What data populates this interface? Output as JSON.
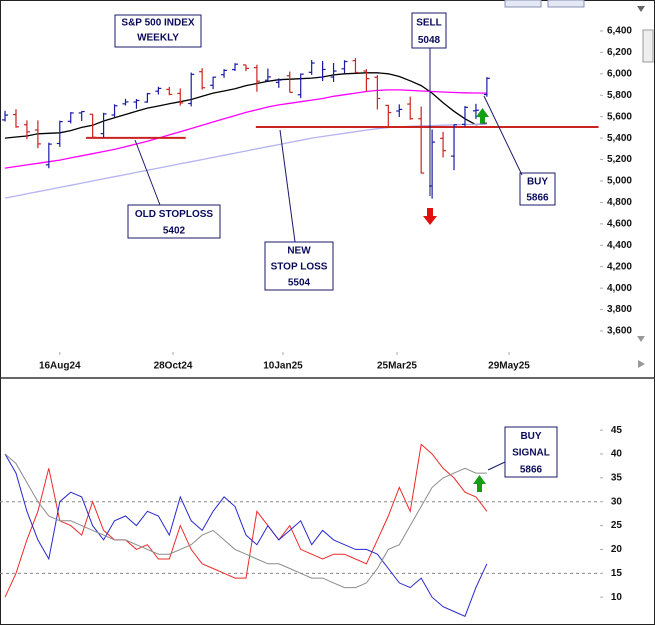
{
  "chart_data": [
    {
      "type": "ohlc",
      "title": "S&P 500 INDEX",
      "subtitle": "WEEKLY",
      "categories": [
        null,
        null,
        null,
        null,
        null,
        null,
        null,
        null,
        null,
        null,
        null,
        null,
        null,
        null,
        null,
        null,
        null,
        null,
        null,
        null,
        null,
        null,
        null,
        null,
        null,
        null,
        null,
        null,
        null,
        null,
        null,
        null,
        null,
        null,
        null,
        null,
        null,
        null,
        null,
        null,
        null,
        null,
        null,
        null,
        null
      ],
      "open": [
        5570,
        5620,
        5525,
        5476,
        5151,
        5350,
        5557,
        5635,
        5623,
        5442,
        5616,
        5720,
        5737,
        5737,
        5838,
        5855,
        5817,
        5723,
        6020,
        5893,
        5992,
        6040,
        6083,
        6058,
        5940,
        5920,
        5982,
        5805,
        6014,
        5969,
        5970,
        6047,
        6123,
        6026,
        5968,
        5705,
        5653,
        5718,
        5581,
        4953,
        5398,
        5232,
        5529,
        5655,
        5807
      ],
      "high": [
        5655,
        5670,
        5566,
        5566,
        5358,
        5563,
        5643,
        5651,
        5626,
        5636,
        5716,
        5767,
        5765,
        5822,
        5879,
        5878,
        5863,
        6012,
        6053,
        5972,
        6044,
        6099,
        6085,
        6085,
        6049,
        5958,
        6021,
        6004,
        6128,
        6120,
        6101,
        6127,
        6147,
        6044,
        5987,
        5710,
        5715,
        5787,
        5695,
        5481,
        5459,
        5528,
        5700,
        5720,
        5969
      ],
      "low": [
        5555,
        5497,
        5390,
        5306,
        5119,
        5318,
        5537,
        5560,
        5402,
        5406,
        5596,
        5704,
        5674,
        5730,
        5807,
        5800,
        5703,
        5696,
        5853,
        5856,
        5963,
        6026,
        6025,
        5833,
        5929,
        5869,
        5827,
        5773,
        5990,
        5932,
        5924,
        6004,
        6008,
        5837,
        5667,
        5505,
        5597,
        5572,
        5070,
        4835,
        5220,
        5101,
        5507,
        5579,
        5786
      ],
      "close": [
        5615,
        5505,
        5459,
        5346,
        5344,
        5554,
        5635,
        5648,
        5408,
        5626,
        5702,
        5738,
        5751,
        5815,
        5864,
        5808,
        5729,
        5995,
        5870,
        5969,
        6032,
        6090,
        6051,
        5931,
        5971,
        5942,
        5827,
        5997,
        6101,
        6041,
        6026,
        6115,
        6013,
        5955,
        5770,
        5639,
        5668,
        5581,
        5074,
        5363,
        5283,
        5525,
        5687,
        5660,
        5958
      ],
      "up_color": "#1a1aa8",
      "down_color": "#cc2222",
      "overlays": [
        {
          "color": "#000000",
          "values": [
            5400,
            5410,
            5420,
            5440,
            5445,
            5450,
            5470,
            5500,
            5520,
            5560,
            5590,
            5620,
            5650,
            5680,
            5700,
            5720,
            5740,
            5760,
            5790,
            5820,
            5840,
            5860,
            5890,
            5910,
            5930,
            5945,
            5950,
            5955,
            5960,
            5970,
            5990,
            6000,
            6005,
            6010,
            6010,
            6000,
            5975,
            5935,
            5890,
            5820,
            5730,
            5650,
            5580,
            5525,
            5540
          ]
        },
        {
          "color": "#ff00ff",
          "values": [
            5120,
            5135,
            5150,
            5165,
            5180,
            5195,
            5215,
            5235,
            5255,
            5275,
            5295,
            5320,
            5345,
            5370,
            5400,
            5430,
            5460,
            5490,
            5520,
            5550,
            5580,
            5610,
            5640,
            5665,
            5690,
            5710,
            5725,
            5740,
            5755,
            5770,
            5790,
            5805,
            5820,
            5835,
            5845,
            5850,
            5850,
            5845,
            5840,
            5835,
            5830,
            5826,
            5823,
            5821,
            5820
          ]
        },
        {
          "color": "#b4b4f0",
          "values": [
            4840,
            4860,
            4880,
            4900,
            4920,
            4940,
            4960,
            4980,
            5000,
            5020,
            5040,
            5060,
            5080,
            5100,
            5120,
            5140,
            5160,
            5180,
            5200,
            5220,
            5240,
            5260,
            5280,
            5300,
            5320,
            5340,
            5360,
            5380,
            5400,
            5415,
            5430,
            5445,
            5460,
            5475,
            5488,
            5498,
            5505,
            5510,
            5514,
            5518,
            5521,
            5524,
            5527,
            5529,
            5531
          ]
        }
      ],
      "levels": [
        {
          "value": 5402,
          "x": [
            7.4,
            16.5
          ],
          "color": "#cc2222"
        },
        {
          "value": 5504,
          "x": [
            22.9,
            54.2
          ],
          "color": "#cc2222"
        }
      ],
      "annotations": [
        {
          "lines": [
            "SELL",
            "5048"
          ]
        },
        {
          "lines": [
            "BUY",
            "5866"
          ]
        },
        {
          "lines": [
            "OLD STOPLOSS",
            "5402"
          ]
        },
        {
          "lines": [
            "NEW",
            "STOP LOSS",
            "5504"
          ]
        }
      ],
      "xlim": [
        -0.46,
        54.33
      ],
      "xticks": [
        {
          "value": 5,
          "label": "16Aug24"
        },
        {
          "value": 15.34,
          "label": "28Oct24"
        },
        {
          "value": 25.38,
          "label": "10Jan25"
        },
        {
          "value": 35.79,
          "label": "25Mar25"
        },
        {
          "value": 46.02,
          "label": "29May25"
        }
      ],
      "ylim": [
        3404,
        6689
      ],
      "yticks": [
        {
          "value": 3600,
          "label": "3,600"
        },
        {
          "value": 3800,
          "label": "3,800"
        },
        {
          "value": 4000,
          "label": "4,000"
        },
        {
          "value": 4200,
          "label": "4,200"
        },
        {
          "value": 4400,
          "label": "4,400"
        },
        {
          "value": 4600,
          "label": "4,600"
        },
        {
          "value": 4800,
          "label": "4,800"
        },
        {
          "value": 5000,
          "label": "5,000"
        },
        {
          "value": 5200,
          "label": "5,200"
        },
        {
          "value": 5400,
          "label": "5,400"
        },
        {
          "value": 5600,
          "label": "5,600"
        },
        {
          "value": 5800,
          "label": "5,800"
        },
        {
          "value": 6000,
          "label": "6,000"
        },
        {
          "value": 6200,
          "label": "6,200"
        },
        {
          "value": 6400,
          "label": "6,400"
        }
      ]
    },
    {
      "type": "line",
      "categories": [
        null,
        null,
        null,
        null,
        null,
        null,
        null,
        null,
        null,
        null,
        null,
        null,
        null,
        null,
        null,
        null,
        null,
        null,
        null,
        null,
        null,
        null,
        null,
        null,
        null,
        null,
        null,
        null,
        null,
        null,
        null,
        null,
        null,
        null,
        null,
        null,
        null,
        null,
        null,
        null,
        null,
        null,
        null,
        null,
        null
      ],
      "series": [
        {
          "color": "#ee2a2a",
          "values": [
            10,
            15,
            22,
            28,
            37,
            26,
            25,
            23,
            30,
            24,
            22,
            22,
            20,
            21,
            18,
            18,
            25,
            20,
            17,
            16,
            15,
            14,
            14,
            28,
            25,
            22,
            25,
            20,
            19,
            18,
            19,
            19,
            18,
            17,
            22,
            27,
            33,
            28,
            42,
            40,
            37,
            35,
            32,
            31,
            28
          ]
        },
        {
          "color": "#2828d0",
          "values": [
            40,
            36,
            28,
            22,
            18,
            30,
            32,
            31,
            25,
            22,
            26,
            27,
            25,
            28,
            27,
            23,
            31,
            26,
            24,
            28,
            31,
            29,
            23,
            21,
            25,
            22,
            24,
            26,
            21,
            24,
            22,
            21,
            20,
            20,
            19,
            16,
            13,
            12,
            14,
            10,
            8,
            7,
            6,
            12,
            17
          ]
        },
        {
          "color": "#8c8c8c",
          "values": [
            40,
            38,
            34,
            30,
            27,
            26,
            26,
            25,
            24,
            23,
            22,
            22,
            21,
            20,
            19,
            19,
            20,
            21,
            23,
            24,
            22,
            20,
            19,
            18,
            17,
            17,
            16,
            15,
            14,
            14,
            13,
            12,
            12,
            13,
            16,
            20,
            21,
            25,
            29,
            33,
            35,
            36,
            37,
            36,
            36
          ]
        }
      ],
      "reference_lines": [
        30,
        15
      ],
      "annotations": [
        {
          "lines": [
            "BUY",
            "SIGNAL",
            "5866"
          ]
        }
      ],
      "xlim": [
        -0.46,
        54.33
      ],
      "ylim": [
        4.8,
        55.5
      ],
      "yticks": [
        10,
        15,
        20,
        25,
        30,
        35,
        40,
        45
      ]
    }
  ]
}
